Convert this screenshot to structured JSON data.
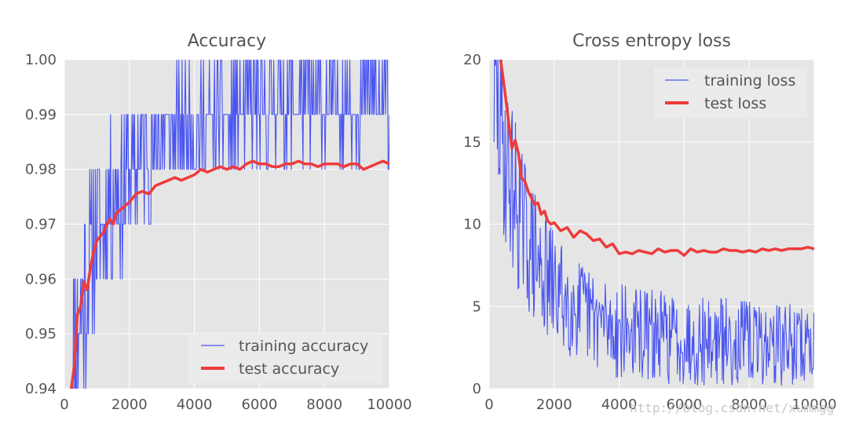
{
  "chart_data": [
    {
      "type": "line",
      "title": "Accuracy",
      "xlabel": "",
      "ylabel": "",
      "xlim": [
        0,
        10000
      ],
      "ylim": [
        0.94,
        1.0
      ],
      "xticks": [
        0,
        2000,
        4000,
        6000,
        8000,
        10000
      ],
      "xtick_labels": [
        "0",
        "2000",
        "4000",
        "6000",
        "8000",
        "10000"
      ],
      "yticks": [
        0.94,
        0.95,
        0.96,
        0.97,
        0.98,
        0.99,
        1.0
      ],
      "ytick_labels": [
        "0.94",
        "0.95",
        "0.96",
        "0.97",
        "0.98",
        "0.99",
        "1.00"
      ],
      "grid": true,
      "legend_position": "lower-right",
      "series": [
        {
          "name": "training accuracy",
          "color": "#4a55f0",
          "kind": "noisy-train",
          "x_start": 200,
          "x_end": 10000,
          "step": 20,
          "discrete_step": 0.01,
          "trend": [
            [
              200,
              0.945
            ],
            [
              600,
              0.958
            ],
            [
              1000,
              0.968
            ],
            [
              1500,
              0.975
            ],
            [
              2000,
              0.98
            ],
            [
              3000,
              0.986
            ],
            [
              4000,
              0.988
            ],
            [
              6000,
              0.991
            ],
            [
              8000,
              0.992
            ],
            [
              10000,
              0.993
            ]
          ],
          "noise": [
            [
              200,
              0.02
            ],
            [
              1500,
              0.015
            ],
            [
              3000,
              0.011
            ],
            [
              10000,
              0.009
            ]
          ],
          "clip": [
            0.92,
            1.0
          ],
          "seed": 11
        },
        {
          "name": "test accuracy",
          "color": "#ee3b3b",
          "kind": "points",
          "x": [
            200,
            300,
            400,
            500,
            600,
            700,
            800,
            900,
            1000,
            1200,
            1400,
            1500,
            1600,
            1800,
            2000,
            2200,
            2400,
            2600,
            2800,
            3000,
            3200,
            3400,
            3600,
            3800,
            4000,
            4200,
            4400,
            4600,
            4800,
            5000,
            5200,
            5400,
            5600,
            5800,
            6000,
            6200,
            6400,
            6600,
            6800,
            7000,
            7200,
            7400,
            7600,
            7800,
            8000,
            8200,
            8400,
            8600,
            8800,
            9000,
            9200,
            9400,
            9600,
            9800,
            10000
          ],
          "y": [
            0.9395,
            0.944,
            0.9535,
            0.955,
            0.9595,
            0.958,
            0.962,
            0.965,
            0.967,
            0.9685,
            0.971,
            0.97,
            0.972,
            0.973,
            0.974,
            0.9755,
            0.976,
            0.9755,
            0.977,
            0.9775,
            0.978,
            0.9785,
            0.978,
            0.9785,
            0.979,
            0.98,
            0.9795,
            0.98,
            0.9805,
            0.98,
            0.9805,
            0.98,
            0.981,
            0.9815,
            0.981,
            0.981,
            0.9805,
            0.9805,
            0.981,
            0.981,
            0.9815,
            0.981,
            0.981,
            0.9805,
            0.981,
            0.981,
            0.981,
            0.9805,
            0.981,
            0.981,
            0.98,
            0.9805,
            0.981,
            0.9815,
            0.981
          ]
        }
      ]
    },
    {
      "type": "line",
      "title": "Cross entropy loss",
      "xlabel": "",
      "ylabel": "",
      "xlim": [
        0,
        10000
      ],
      "ylim": [
        0,
        20
      ],
      "xticks": [
        0,
        2000,
        4000,
        6000,
        8000,
        10000
      ],
      "xtick_labels": [
        "0",
        "2000",
        "4000",
        "6000",
        "8000",
        "10000"
      ],
      "yticks": [
        0,
        5,
        10,
        15,
        20
      ],
      "ytick_labels": [
        "0",
        "5",
        "10",
        "15",
        "20"
      ],
      "grid": true,
      "legend_position": "upper-right",
      "series": [
        {
          "name": "training loss",
          "color": "#4a55f0",
          "kind": "noisy-train",
          "x_start": 150,
          "x_end": 10000,
          "step": 20,
          "discrete_step": 0,
          "trend": [
            [
              150,
              18
            ],
            [
              500,
              14
            ],
            [
              1000,
              10
            ],
            [
              1500,
              7.5
            ],
            [
              2000,
              6
            ],
            [
              3000,
              4.5
            ],
            [
              4000,
              3.5
            ],
            [
              6000,
              3
            ],
            [
              8000,
              2.8
            ],
            [
              10000,
              2.6
            ]
          ],
          "noise": [
            [
              150,
              6
            ],
            [
              1500,
              4
            ],
            [
              3000,
              3
            ],
            [
              10000,
              2.5
            ]
          ],
          "clip": [
            0,
            22
          ],
          "seed": 29
        },
        {
          "name": "test loss",
          "color": "#ee3b3b",
          "kind": "points",
          "x": [
            300,
            350,
            400,
            500,
            600,
            700,
            800,
            900,
            1000,
            1100,
            1200,
            1300,
            1400,
            1500,
            1600,
            1700,
            1800,
            1900,
            2000,
            2200,
            2400,
            2600,
            2800,
            3000,
            3200,
            3400,
            3600,
            3800,
            4000,
            4200,
            4400,
            4600,
            4800,
            5000,
            5200,
            5400,
            5600,
            5800,
            6000,
            6200,
            6400,
            6600,
            6800,
            7000,
            7200,
            7400,
            7600,
            7800,
            8000,
            8200,
            8400,
            8600,
            8800,
            9000,
            9200,
            9400,
            9600,
            9800,
            10000
          ],
          "y": [
            20.3,
            20.0,
            19.3,
            17.8,
            16.2,
            14.6,
            15.1,
            14.3,
            12.8,
            12.6,
            12.0,
            11.6,
            11.2,
            11.3,
            10.6,
            10.8,
            10.2,
            10.0,
            10.1,
            9.6,
            9.8,
            9.2,
            9.6,
            9.4,
            9.0,
            9.1,
            8.6,
            8.8,
            8.2,
            8.3,
            8.2,
            8.4,
            8.3,
            8.2,
            8.5,
            8.3,
            8.4,
            8.4,
            8.1,
            8.5,
            8.3,
            8.4,
            8.3,
            8.3,
            8.5,
            8.4,
            8.4,
            8.3,
            8.4,
            8.3,
            8.5,
            8.4,
            8.5,
            8.4,
            8.5,
            8.5,
            8.5,
            8.6,
            8.5
          ]
        }
      ]
    }
  ],
  "watermark": "http://blog.csdn.net/xummgg"
}
